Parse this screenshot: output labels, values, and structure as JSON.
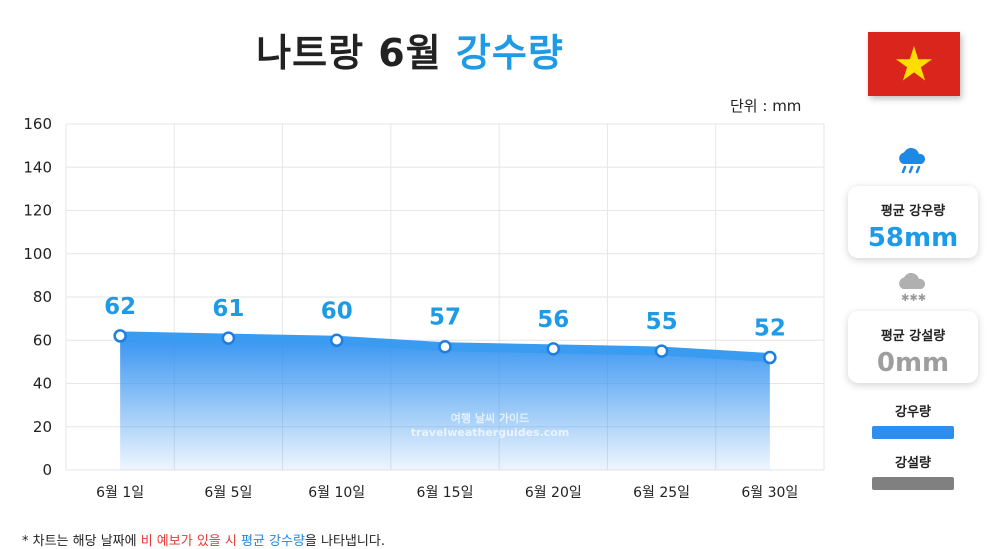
{
  "header": {
    "title_main": "나트랑 6월",
    "title_accent": "강수량",
    "unit": "단위 : mm"
  },
  "colors": {
    "accent": "#1e9be6",
    "rain_line": "#3a9cf0",
    "snow_legend": "#808080",
    "flag_red": "#da251d",
    "flag_star": "#ffde00"
  },
  "chart_data": {
    "type": "area",
    "categories": [
      "6월 1일",
      "6월 5일",
      "6월 10일",
      "6월 15일",
      "6월 20일",
      "6월 25일",
      "6월 30일"
    ],
    "series": [
      {
        "name": "강우량",
        "values": [
          62,
          61,
          60,
          57,
          56,
          55,
          52
        ]
      }
    ],
    "ylim": [
      0,
      160
    ],
    "yticks": [
      0,
      20,
      40,
      60,
      80,
      100,
      120,
      140,
      160
    ],
    "grid": true,
    "data_labels": true
  },
  "side_panel": {
    "rain_card": {
      "label": "평균 강우량",
      "value": "58mm",
      "icon": "rain-cloud-icon"
    },
    "snow_card": {
      "label": "평균 강설량",
      "value": "0mm",
      "icon": "snow-cloud-icon"
    },
    "legend": [
      {
        "label": "강우량",
        "color": "#2b8ef0"
      },
      {
        "label": "강설량",
        "color": "#808080"
      }
    ]
  },
  "watermark": {
    "line1": "여행 날씨 가이드",
    "line2": "travelweatherguides.com"
  },
  "footnote": {
    "prefix": "* 차트는 해당 날짜에 ",
    "highlight_red": "비 예보가 있을 시",
    "middle": " ",
    "highlight_blue": "평균 강수량",
    "suffix": "을 나타냅니다."
  }
}
